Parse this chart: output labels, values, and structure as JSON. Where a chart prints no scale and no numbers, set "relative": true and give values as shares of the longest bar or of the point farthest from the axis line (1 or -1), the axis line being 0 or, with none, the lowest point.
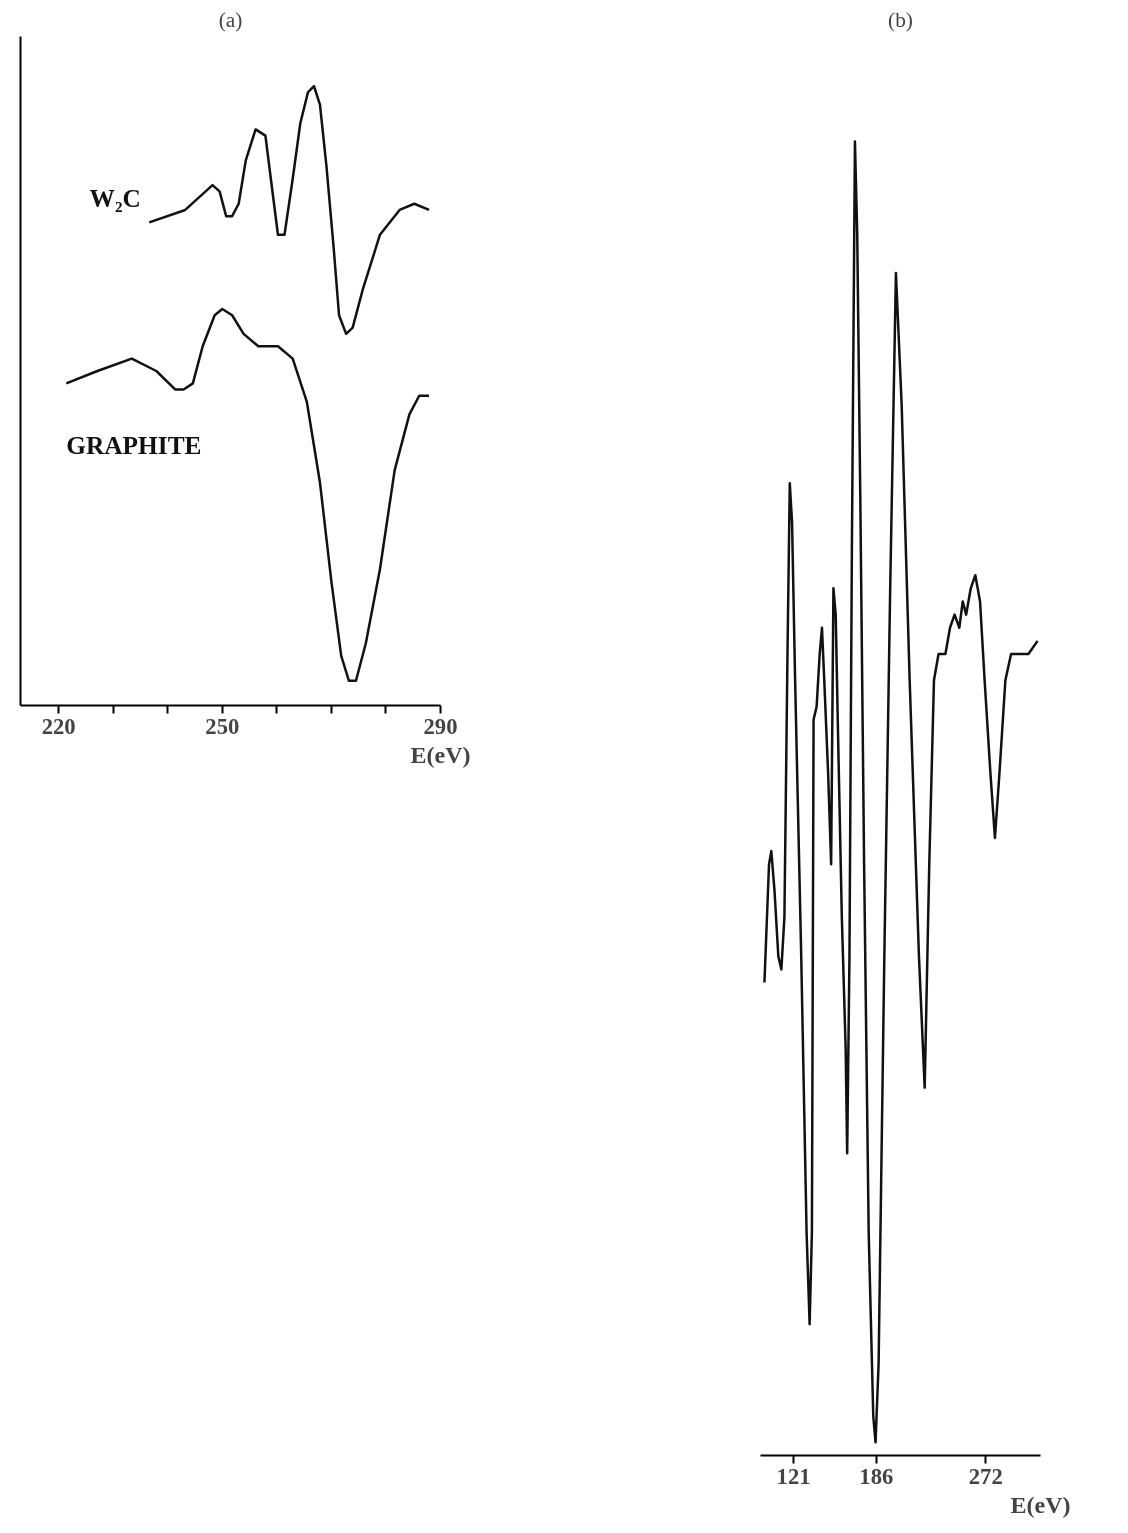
{
  "chart_data": [
    {
      "type": "line",
      "title": "(a)",
      "xlabel": "E(eV)",
      "relative": true,
      "grid": false,
      "tick_labels": "x",
      "xlim": [
        213,
        290
      ],
      "xticks": [
        220,
        {
          "value": 230,
          "label": null
        },
        {
          "value": 240,
          "label": null
        },
        250,
        {
          "value": 260,
          "label": null
        },
        {
          "value": 270,
          "label": null
        },
        {
          "value": 280,
          "label": null
        },
        290
      ],
      "series": [
        {
          "name": "W₂C",
          "color": "#111111",
          "x": [
            236.6,
            243.2,
            248.2,
            249.5,
            250.7,
            251.8,
            253.0,
            254.3,
            256.1,
            257.9,
            258.9,
            260.2,
            261.4,
            262.9,
            264.3,
            265.7,
            266.8,
            267.9,
            269.1,
            270.4,
            271.4,
            272.7,
            273.9,
            275.7,
            278.9,
            282.5,
            285.2,
            287.9
          ],
          "values": [
            0.78,
            0.8,
            0.84,
            0.83,
            0.79,
            0.79,
            0.81,
            0.88,
            0.93,
            0.92,
            0.85,
            0.76,
            0.76,
            0.85,
            0.94,
            0.99,
            1.0,
            0.97,
            0.87,
            0.74,
            0.63,
            0.6,
            0.61,
            0.67,
            0.76,
            0.8,
            0.81,
            0.8
          ]
        },
        {
          "name": "GRAPHITE",
          "color": "#111111",
          "x": [
            221.4,
            227.1,
            233.4,
            237.9,
            241.4,
            242.9,
            244.6,
            246.4,
            248.6,
            250,
            251.8,
            253.9,
            256.6,
            260.2,
            262.9,
            265.5,
            267.9,
            270,
            271.8,
            273.2,
            274.5,
            276.3,
            278.9,
            281.6,
            284.3,
            286.1,
            287.9
          ],
          "values": [
            0.52,
            0.54,
            0.56,
            0.54,
            0.51,
            0.51,
            0.52,
            0.58,
            0.63,
            0.64,
            0.63,
            0.6,
            0.58,
            0.58,
            0.56,
            0.49,
            0.36,
            0.2,
            0.08,
            0.04,
            0.04,
            0.1,
            0.22,
            0.38,
            0.47,
            0.5,
            0.5
          ]
        }
      ]
    },
    {
      "type": "line",
      "title": "(b)",
      "xlabel": "E(eV)",
      "relative": true,
      "grid": false,
      "tick_labels": "x",
      "xlim": [
        95,
        315
      ],
      "xticks": [
        121,
        186,
        272
      ],
      "series": [
        {
          "color": "#111111",
          "x": [
            98.1,
            101.7,
            103.5,
            106.0,
            109.0,
            111.4,
            113.8,
            116.2,
            118.0,
            119.8,
            122.2,
            127.0,
            131.2,
            133.6,
            135.4,
            136.7,
            139.1,
            141.5,
            143.3,
            145.1,
            148.1,
            150.5,
            152.3,
            154.1,
            155.9,
            158.9,
            161.9,
            163.1,
            164.9,
            166.8,
            169.2,
            171.0,
            173.4,
            176.4,
            180.0,
            183.6,
            185.4,
            187.8,
            192.3,
            196.9,
            201.4,
            205.9,
            212.2,
            219.5,
            224.0,
            227.6,
            231.3,
            234.9,
            240.3,
            243.9,
            247.5,
            251.2,
            253.9,
            256.6,
            260.2,
            263.8,
            267.5,
            271.1,
            275.6,
            279.2,
            282.8,
            287.4,
            291.9,
            296.4,
            300.9,
            305.5,
            312.7
          ],
          "values": [
            0.36,
            0.45,
            0.46,
            0.43,
            0.38,
            0.37,
            0.41,
            0.61,
            0.74,
            0.71,
            0.59,
            0.38,
            0.17,
            0.1,
            0.17,
            0.56,
            0.57,
            0.61,
            0.63,
            0.59,
            0.52,
            0.45,
            0.66,
            0.64,
            0.55,
            0.41,
            0.31,
            0.23,
            0.38,
            0.69,
            1.0,
            0.93,
            0.73,
            0.45,
            0.17,
            0.03,
            0.01,
            0.07,
            0.38,
            0.66,
            0.9,
            0.8,
            0.59,
            0.38,
            0.28,
            0.45,
            0.59,
            0.61,
            0.61,
            0.63,
            0.64,
            0.63,
            0.65,
            0.64,
            0.66,
            0.67,
            0.65,
            0.59,
            0.52,
            0.47,
            0.52,
            0.59,
            0.61,
            0.61,
            0.61,
            0.61,
            0.62
          ]
        }
      ]
    }
  ]
}
